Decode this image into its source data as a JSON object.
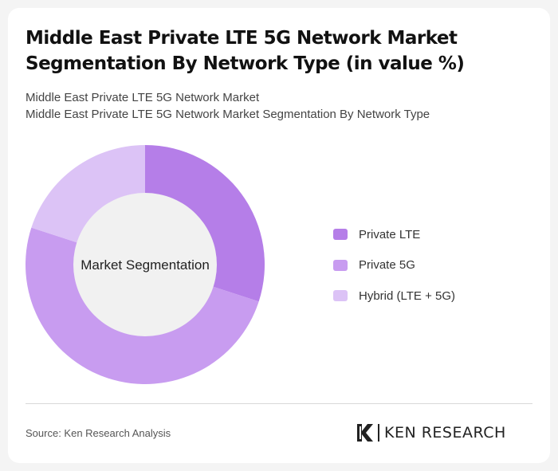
{
  "title": "Middle East Private LTE 5G Network Market Segmentation By Network Type (in value %)",
  "subtitle_line1": "Middle East Private LTE 5G Network Market",
  "subtitle_line2": "Middle East Private LTE 5G Network Market Segmentation By Network Type",
  "source": "Source: Ken Research Analysis",
  "logo_text": "KEN RESEARCH",
  "chart_data": {
    "type": "pie",
    "donut": true,
    "center_label": "Market Segmentation",
    "legend_position": "right",
    "categories": [
      "Private LTE",
      "Private 5G",
      "Hybrid (LTE + 5G)"
    ],
    "values": [
      30,
      50,
      20
    ],
    "colors": [
      "#b57ee8",
      "#c89cf0",
      "#dcc3f6"
    ]
  }
}
